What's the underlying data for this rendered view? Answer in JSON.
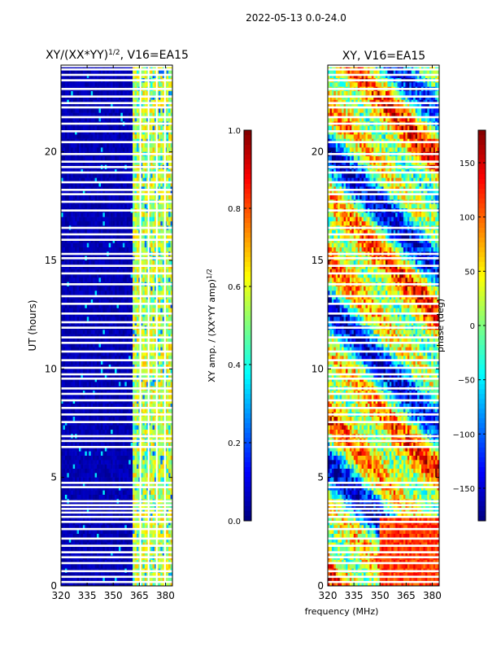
{
  "suptitle": "2022-05-13 0.0-24.0",
  "colormap": [
    "#00007f",
    "#0000ff",
    "#007fff",
    "#00ffff",
    "#7fff7f",
    "#ffff00",
    "#ff7f00",
    "#ff0000",
    "#7f0000"
  ],
  "chart_data": [
    {
      "type": "heatmap",
      "title_main": "XY/(XX*YY)",
      "title_sup": "1/2",
      "title_tail": ", V16=EA15",
      "ylabel": "UT (hours)",
      "xlabel": "",
      "x_range": [
        320,
        384
      ],
      "y_range": [
        0,
        24
      ],
      "xticks": [
        320,
        335,
        350,
        365,
        380
      ],
      "yticks": [
        0,
        5,
        10,
        15,
        20
      ],
      "colorbar": {
        "label_main": "XY amp. / (XX*YY amp)",
        "label_sup": "1/2",
        "range": [
          0.0,
          1.0
        ],
        "ticks": [
          0.0,
          0.2,
          0.4,
          0.6,
          0.8,
          1.0
        ],
        "tick_labels": [
          "0.0",
          "0.2",
          "0.4",
          "0.6",
          "0.8",
          "1.0"
        ]
      },
      "notes": "amplitude ratio near 0 below 361 MHz; elevated (0.4-0.7) in channels 361-384 MHz"
    },
    {
      "type": "heatmap",
      "title_main": "XY, V16=EA15",
      "ylabel": "",
      "xlabel": "frequency (MHz)",
      "x_range": [
        320,
        384
      ],
      "y_range": [
        0,
        24
      ],
      "xticks": [
        320,
        335,
        350,
        365,
        380
      ],
      "yticks": [
        0,
        5,
        10,
        15,
        20
      ],
      "colorbar": {
        "label_main": "phase (deg)",
        "range": [
          -180,
          180
        ],
        "ticks": [
          150,
          100,
          50,
          0,
          -50,
          -100,
          -150
        ],
        "tick_labels": [
          "150",
          "100",
          "50",
          "0",
          "−50",
          "−100",
          "−150"
        ]
      },
      "notes": "phase varies widely (-180 to 180 deg) across time and frequency"
    }
  ],
  "flagged_hours": [
    0.18,
    0.42,
    0.68,
    1.05,
    1.32,
    1.55,
    1.85,
    2.18,
    2.62,
    2.95,
    3.18,
    3.38,
    3.55,
    3.72,
    3.9,
    4.55,
    4.75,
    6.4,
    6.68,
    6.9,
    7.55,
    7.9,
    8.2,
    8.55,
    8.85,
    9.1,
    9.55,
    9.75,
    10.05,
    10.4,
    10.8,
    11.2,
    11.45,
    11.9,
    12.15,
    12.55,
    13.0,
    13.35,
    13.9,
    14.4,
    14.75,
    15.1,
    15.3,
    15.95,
    16.2,
    16.5,
    17.3,
    17.7,
    18.05,
    18.25,
    18.6,
    19.05,
    19.3,
    19.55,
    19.9,
    20.45,
    20.95,
    21.3,
    21.6,
    22.05,
    22.25,
    22.55,
    22.9,
    23.3,
    23.55,
    23.8,
    23.95
  ],
  "flagged_freq_mhz": [
    365.6,
    370.3,
    375.0,
    379.7
  ]
}
